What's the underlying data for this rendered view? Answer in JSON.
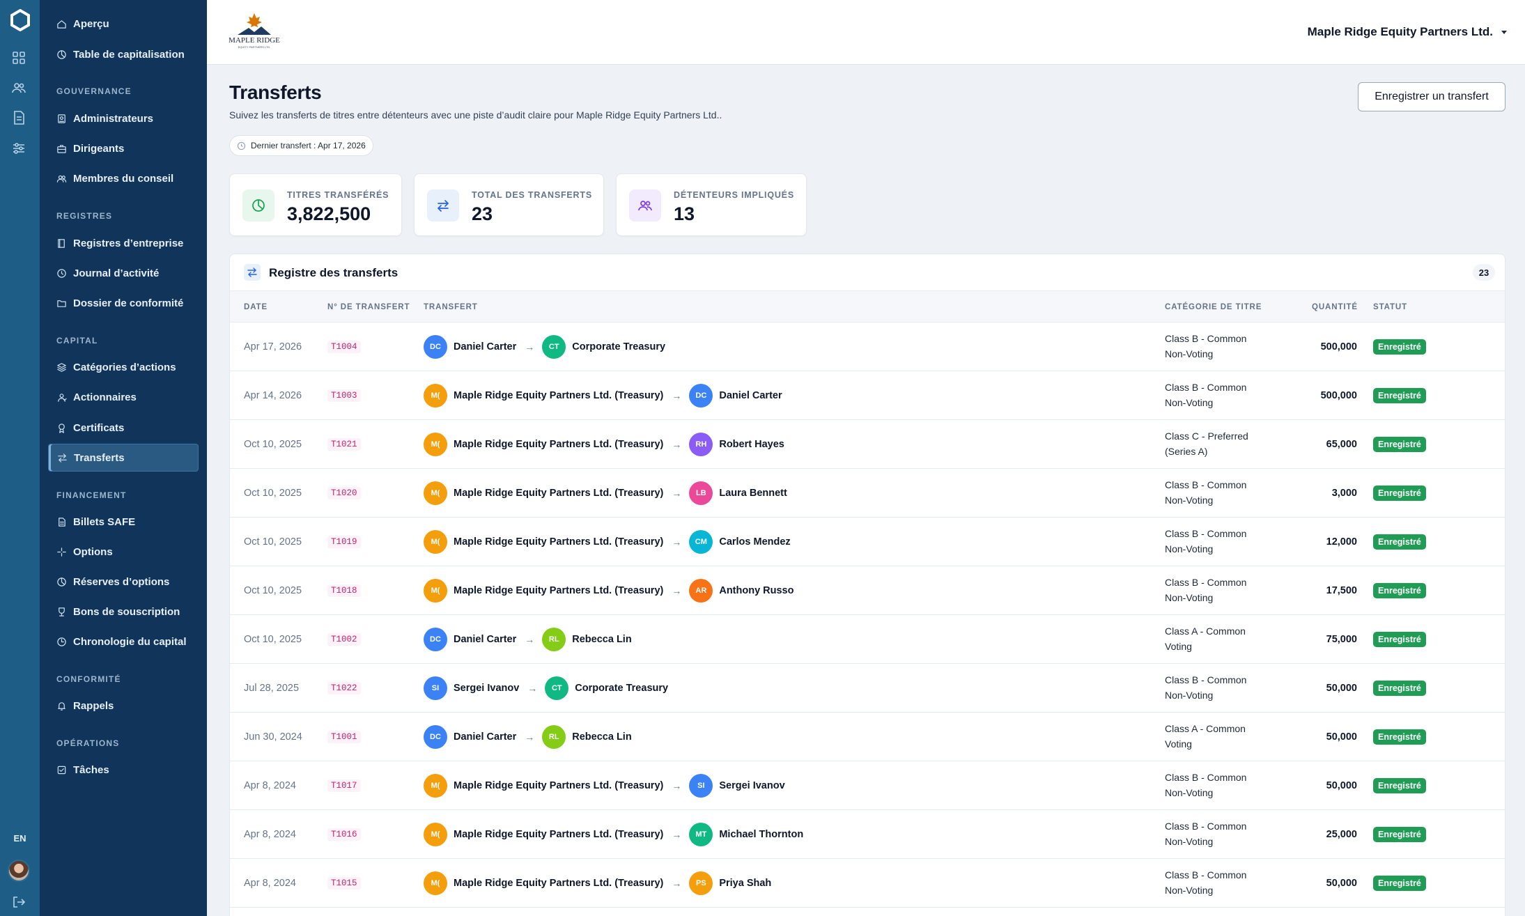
{
  "rail": {
    "lang": "EN"
  },
  "sidebar": {
    "top": [
      {
        "label": "Aperçu",
        "icon": "home-icon"
      },
      {
        "label": "Table de capitalisation",
        "icon": "pie-chart-icon"
      }
    ],
    "sections": [
      {
        "title": "GOUVERNANCE",
        "items": [
          {
            "label": "Administrateurs",
            "icon": "badge-icon"
          },
          {
            "label": "Dirigeants",
            "icon": "briefcase-icon"
          },
          {
            "label": "Membres du conseil",
            "icon": "users-icon"
          }
        ]
      },
      {
        "title": "REGISTRES",
        "items": [
          {
            "label": "Registres d’entreprise",
            "icon": "book-icon"
          },
          {
            "label": "Journal d’activité",
            "icon": "clock-icon"
          },
          {
            "label": "Dossier de conformité",
            "icon": "folder-icon"
          }
        ]
      },
      {
        "title": "CAPITAL",
        "items": [
          {
            "label": "Catégories d’actions",
            "icon": "layers-icon"
          },
          {
            "label": "Actionnaires",
            "icon": "user-icon"
          },
          {
            "label": "Certificats",
            "icon": "award-icon"
          },
          {
            "label": "Transferts",
            "icon": "transfer-icon",
            "active": true
          }
        ]
      },
      {
        "title": "FINANCEMENT",
        "items": [
          {
            "label": "Billets SAFE",
            "icon": "document-icon"
          },
          {
            "label": "Options",
            "icon": "sparkle-icon"
          },
          {
            "label": "Réserves d’options",
            "icon": "pie-chart-icon"
          },
          {
            "label": "Bons de souscription",
            "icon": "trophy-icon"
          },
          {
            "label": "Chronologie du capital",
            "icon": "timeline-icon"
          }
        ]
      },
      {
        "title": "CONFORMITÉ",
        "items": [
          {
            "label": "Rappels",
            "icon": "bell-icon"
          }
        ]
      },
      {
        "title": "OPÉRATIONS",
        "items": [
          {
            "label": "Tâches",
            "icon": "checkbox-icon"
          }
        ]
      }
    ]
  },
  "topbar": {
    "logo_text": "MAPLE RIDGE",
    "logo_subtext": "EQUITY PARTNERS LTD.",
    "company": "Maple Ridge Equity Partners Ltd."
  },
  "page": {
    "title": "Transferts",
    "subtitle": "Suivez les transferts de titres entre détenteurs avec une piste d’audit claire pour Maple Ridge Equity Partners Ltd..",
    "last_transfer": "Dernier transfert : Apr 17, 2026",
    "record_button": "Enregistrer un transfert"
  },
  "stats": [
    {
      "label": "TITRES TRANSFÉRÉS",
      "value": "3,822,500",
      "icon": "pie-chart-icon",
      "color": "#16a34a",
      "bg": "#e8f7ee"
    },
    {
      "label": "TOTAL DES TRANSFERTS",
      "value": "23",
      "icon": "transfer-icon",
      "color": "#2563eb",
      "bg": "#e8f0fb"
    },
    {
      "label": "DÉTENTEURS IMPLIQUÉS",
      "value": "13",
      "icon": "users-icon",
      "color": "#7c3aed",
      "bg": "#f1ebfd"
    }
  ],
  "register": {
    "title": "Registre des transferts",
    "count": "23",
    "columns": {
      "date": "DATE",
      "number": "N° DE TRANSFERT",
      "transfer": "TRANSFERT",
      "category": "CATÉGORIE DE TITRE",
      "quantity": "QUANTITÉ",
      "status": "STATUT"
    },
    "rows": [
      {
        "date": "Apr 17, 2026",
        "number": "T1004",
        "from": "Daniel Carter",
        "from_initials": "DC",
        "from_color": "#3b82f6",
        "to": "Corporate Treasury",
        "to_initials": "CT",
        "to_color": "#10b981",
        "category_line1": "Class B - Common",
        "category_line2": "Non-Voting",
        "quantity": "500,000",
        "status": "Enregistré"
      },
      {
        "date": "Apr 14, 2026",
        "number": "T1003",
        "from": "Maple Ridge Equity Partners Ltd. (Treasury)",
        "from_initials": "M(",
        "from_color": "#f59e0b",
        "to": "Daniel Carter",
        "to_initials": "DC",
        "to_color": "#3b82f6",
        "category_line1": "Class B - Common",
        "category_line2": "Non-Voting",
        "quantity": "500,000",
        "status": "Enregistré"
      },
      {
        "date": "Oct 10, 2025",
        "number": "T1021",
        "from": "Maple Ridge Equity Partners Ltd. (Treasury)",
        "from_initials": "M(",
        "from_color": "#f59e0b",
        "to": "Robert Hayes",
        "to_initials": "RH",
        "to_color": "#8b5cf6",
        "category_line1": "Class C - Preferred",
        "category_line2": "(Series A)",
        "quantity": "65,000",
        "status": "Enregistré"
      },
      {
        "date": "Oct 10, 2025",
        "number": "T1020",
        "from": "Maple Ridge Equity Partners Ltd. (Treasury)",
        "from_initials": "M(",
        "from_color": "#f59e0b",
        "to": "Laura Bennett",
        "to_initials": "LB",
        "to_color": "#ec4899",
        "category_line1": "Class B - Common",
        "category_line2": "Non-Voting",
        "quantity": "3,000",
        "status": "Enregistré"
      },
      {
        "date": "Oct 10, 2025",
        "number": "T1019",
        "from": "Maple Ridge Equity Partners Ltd. (Treasury)",
        "from_initials": "M(",
        "from_color": "#f59e0b",
        "to": "Carlos Mendez",
        "to_initials": "CM",
        "to_color": "#06b6d4",
        "category_line1": "Class B - Common",
        "category_line2": "Non-Voting",
        "quantity": "12,000",
        "status": "Enregistré"
      },
      {
        "date": "Oct 10, 2025",
        "number": "T1018",
        "from": "Maple Ridge Equity Partners Ltd. (Treasury)",
        "from_initials": "M(",
        "from_color": "#f59e0b",
        "to": "Anthony Russo",
        "to_initials": "AR",
        "to_color": "#f97316",
        "category_line1": "Class B - Common",
        "category_line2": "Non-Voting",
        "quantity": "17,500",
        "status": "Enregistré"
      },
      {
        "date": "Oct 10, 2025",
        "number": "T1002",
        "from": "Daniel Carter",
        "from_initials": "DC",
        "from_color": "#3b82f6",
        "to": "Rebecca Lin",
        "to_initials": "RL",
        "to_color": "#84cc16",
        "category_line1": "Class A - Common",
        "category_line2": "Voting",
        "quantity": "75,000",
        "status": "Enregistré"
      },
      {
        "date": "Jul 28, 2025",
        "number": "T1022",
        "from": "Sergei Ivanov",
        "from_initials": "SI",
        "from_color": "#3b82f6",
        "to": "Corporate Treasury",
        "to_initials": "CT",
        "to_color": "#10b981",
        "category_line1": "Class B - Common",
        "category_line2": "Non-Voting",
        "quantity": "50,000",
        "status": "Enregistré"
      },
      {
        "date": "Jun 30, 2024",
        "number": "T1001",
        "from": "Daniel Carter",
        "from_initials": "DC",
        "from_color": "#3b82f6",
        "to": "Rebecca Lin",
        "to_initials": "RL",
        "to_color": "#84cc16",
        "category_line1": "Class A - Common",
        "category_line2": "Voting",
        "quantity": "50,000",
        "status": "Enregistré"
      },
      {
        "date": "Apr 8, 2024",
        "number": "T1017",
        "from": "Maple Ridge Equity Partners Ltd. (Treasury)",
        "from_initials": "M(",
        "from_color": "#f59e0b",
        "to": "Sergei Ivanov",
        "to_initials": "SI",
        "to_color": "#3b82f6",
        "category_line1": "Class B - Common",
        "category_line2": "Non-Voting",
        "quantity": "50,000",
        "status": "Enregistré"
      },
      {
        "date": "Apr 8, 2024",
        "number": "T1016",
        "from": "Maple Ridge Equity Partners Ltd. (Treasury)",
        "from_initials": "M(",
        "from_color": "#f59e0b",
        "to": "Michael Thornton",
        "to_initials": "MT",
        "to_color": "#10b981",
        "category_line1": "Class B - Common",
        "category_line2": "Non-Voting",
        "quantity": "25,000",
        "status": "Enregistré"
      },
      {
        "date": "Apr 8, 2024",
        "number": "T1015",
        "from": "Maple Ridge Equity Partners Ltd. (Treasury)",
        "from_initials": "M(",
        "from_color": "#f59e0b",
        "to": "Priya Shah",
        "to_initials": "PS",
        "to_color": "#f59e0b",
        "category_line1": "Class B - Common",
        "category_line2": "Non-Voting",
        "quantity": "50,000",
        "status": "Enregistré"
      }
    ]
  }
}
